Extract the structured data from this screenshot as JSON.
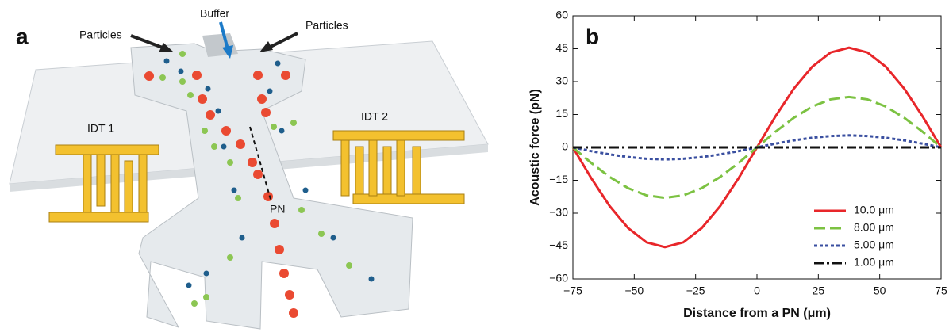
{
  "panel_a": {
    "label": "a",
    "particles_left": "Particles",
    "buffer": "Buffer",
    "particles_right": "Particles",
    "idt1": "IDT 1",
    "idt2": "IDT 2",
    "pn": "PN"
  },
  "chart_data": {
    "type": "line",
    "panel_label": "b",
    "x_label": "Distance from a PN (μm)",
    "y_label": "Acoustic force (pN)",
    "x": [
      -75,
      -67.5,
      -60,
      -52.5,
      -45,
      -37.5,
      -30,
      -22.5,
      -15,
      -7.5,
      0,
      7.5,
      15,
      22.5,
      30,
      37.5,
      45,
      52.5,
      60,
      67.5,
      75
    ],
    "series": [
      {
        "name": "10.0 μm",
        "color": "#e8262a",
        "style": "solid",
        "values": [
          0,
          -14.1,
          -26.8,
          -36.8,
          -43.3,
          -45.5,
          -43.3,
          -36.8,
          -26.8,
          -14.1,
          0,
          14.1,
          26.8,
          36.8,
          43.3,
          45.5,
          43.3,
          36.8,
          26.8,
          14.1,
          0
        ]
      },
      {
        "name": "8.00 μm",
        "color": "#7cc242",
        "style": "dashed",
        "values": [
          0,
          -7.1,
          -13.5,
          -18.6,
          -21.9,
          -23,
          -21.9,
          -18.6,
          -13.5,
          -7.1,
          0,
          7.1,
          13.5,
          18.6,
          21.9,
          23,
          21.9,
          18.6,
          13.5,
          7.1,
          0
        ]
      },
      {
        "name": "5.00 μm",
        "color": "#3a4fa0",
        "style": "dotted",
        "values": [
          0,
          -1.7,
          -3.2,
          -4.4,
          -5.2,
          -5.5,
          -5.2,
          -4.4,
          -3.2,
          -1.7,
          0,
          1.7,
          3.2,
          4.4,
          5.2,
          5.5,
          5.2,
          4.4,
          3.2,
          1.7,
          0
        ]
      },
      {
        "name": "1.00 μm",
        "color": "#111111",
        "style": "dashdot",
        "values": [
          0,
          0,
          0,
          0,
          0,
          0,
          0,
          0,
          0,
          0,
          0,
          0,
          0,
          0,
          0,
          0,
          0,
          0,
          0,
          0,
          0
        ]
      }
    ],
    "xlim": [
      -75,
      75
    ],
    "ylim": [
      -60,
      60
    ],
    "xticks": [
      {
        "value": -75,
        "label": "−75"
      },
      {
        "value": -50,
        "label": "−50"
      },
      {
        "value": -25,
        "label": "−25"
      },
      0,
      25,
      50,
      75
    ],
    "yticks": [
      {
        "value": -60,
        "label": "−60"
      },
      {
        "value": -45,
        "label": "−45"
      },
      {
        "value": -30,
        "label": "−30"
      },
      {
        "value": -15,
        "label": "−15"
      },
      0,
      15,
      30,
      45,
      60
    ],
    "grid": false,
    "legend": "lower right"
  }
}
